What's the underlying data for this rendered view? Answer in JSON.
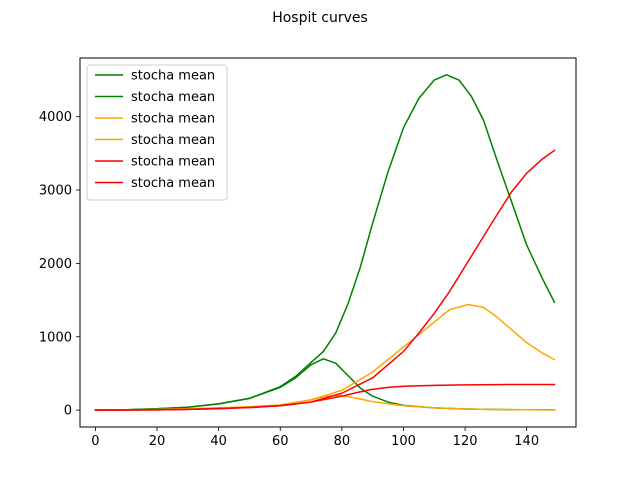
{
  "chart_data": {
    "type": "line",
    "title": "Hospit curves",
    "xlabel": "",
    "ylabel": "",
    "xlim": [
      -5,
      156
    ],
    "ylim": [
      -230,
      4800
    ],
    "x_ticks": [
      0,
      20,
      40,
      60,
      80,
      100,
      120,
      140
    ],
    "y_ticks": [
      0,
      1000,
      2000,
      3000,
      4000
    ],
    "legend_position": "upper-left",
    "grid": false,
    "series": [
      {
        "name": "stocha mean",
        "color": "#008000",
        "x": [
          0,
          10,
          20,
          30,
          40,
          50,
          60,
          65,
          70,
          74,
          78,
          82,
          86,
          90,
          95,
          100,
          105,
          110,
          114,
          118,
          122,
          126,
          130,
          135,
          140,
          145,
          149
        ],
        "y": [
          0,
          5,
          18,
          40,
          85,
          160,
          320,
          460,
          650,
          800,
          1050,
          1450,
          1950,
          2550,
          3250,
          3850,
          4250,
          4500,
          4570,
          4500,
          4280,
          3950,
          3450,
          2850,
          2250,
          1800,
          1470
        ]
      },
      {
        "name": "stocha mean",
        "color": "#008000",
        "x": [
          0,
          10,
          20,
          30,
          40,
          50,
          60,
          65,
          70,
          74,
          78,
          82,
          86,
          90,
          95,
          100,
          110,
          120,
          130,
          140,
          149
        ],
        "y": [
          0,
          5,
          18,
          40,
          85,
          160,
          310,
          440,
          620,
          700,
          640,
          470,
          300,
          190,
          110,
          65,
          30,
          15,
          8,
          5,
          3
        ]
      },
      {
        "name": "stocha mean",
        "color": "#ffa500",
        "x": [
          0,
          10,
          20,
          30,
          40,
          50,
          60,
          70,
          80,
          90,
          100,
          110,
          115,
          121,
          126,
          130,
          135,
          140,
          145,
          149
        ],
        "y": [
          0,
          2,
          8,
          18,
          30,
          45,
          70,
          140,
          270,
          520,
          860,
          1200,
          1370,
          1440,
          1400,
          1280,
          1100,
          920,
          780,
          690
        ]
      },
      {
        "name": "stocha mean",
        "color": "#ffa500",
        "x": [
          0,
          10,
          20,
          30,
          40,
          50,
          60,
          70,
          75,
          80,
          85,
          90,
          100,
          110,
          120,
          130,
          140,
          149
        ],
        "y": [
          0,
          2,
          8,
          18,
          30,
          45,
          70,
          140,
          190,
          200,
          160,
          115,
          60,
          30,
          15,
          8,
          5,
          3
        ]
      },
      {
        "name": "stocha mean",
        "color": "#ff0000",
        "x": [
          0,
          10,
          20,
          30,
          40,
          50,
          60,
          70,
          80,
          90,
          100,
          105,
          110,
          115,
          120,
          125,
          130,
          135,
          140,
          145,
          149
        ],
        "y": [
          0,
          1,
          4,
          10,
          20,
          35,
          60,
          110,
          230,
          440,
          800,
          1050,
          1320,
          1620,
          1960,
          2300,
          2640,
          2970,
          3230,
          3420,
          3540
        ]
      },
      {
        "name": "stocha mean",
        "color": "#ff0000",
        "x": [
          0,
          10,
          20,
          30,
          40,
          50,
          60,
          70,
          80,
          85,
          90,
          95,
          100,
          110,
          120,
          130,
          140,
          149
        ],
        "y": [
          0,
          1,
          4,
          10,
          20,
          35,
          60,
          110,
          190,
          240,
          285,
          310,
          325,
          338,
          345,
          348,
          350,
          350
        ]
      }
    ]
  }
}
